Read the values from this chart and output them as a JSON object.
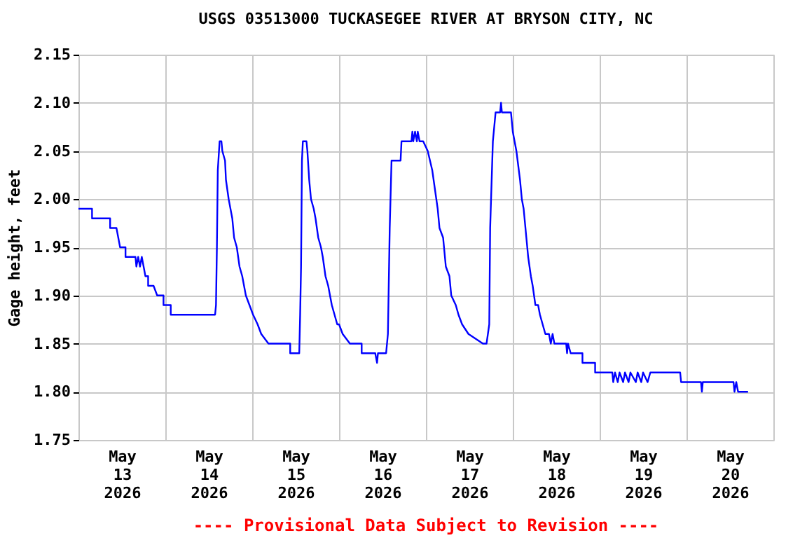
{
  "chart_data": {
    "type": "line",
    "title": "USGS 03513000 TUCKASEGEE RIVER AT BRYSON CITY, NC",
    "ylabel": "Gage height, feet",
    "annotations": [
      "---- Provisional Data Subject to Revision ----"
    ],
    "grid": true,
    "marker": "none",
    "line_style": "solid",
    "ylim": [
      1.75,
      2.15
    ],
    "yticks": [
      {
        "value": 1.75,
        "label": "1.75"
      },
      {
        "value": 1.8,
        "label": "1.80"
      },
      {
        "value": 1.85,
        "label": "1.85"
      },
      {
        "value": 1.9,
        "label": "1.90"
      },
      {
        "value": 1.95,
        "label": "1.95"
      },
      {
        "value": 2.0,
        "label": "2.00"
      },
      {
        "value": 2.05,
        "label": "2.05"
      },
      {
        "value": 2.1,
        "label": "2.10"
      },
      {
        "value": 2.15,
        "label": "2.15"
      }
    ],
    "xlim": [
      "2026-05-13",
      "2026-05-21"
    ],
    "xticks": [
      {
        "value": "2026-05-13T00:00",
        "label": null
      },
      {
        "value": "2026-05-13T12:00",
        "label": "May\n13\n2026"
      },
      {
        "value": "2026-05-14T00:00",
        "label": null
      },
      {
        "value": "2026-05-14T12:00",
        "label": "May\n14\n2026"
      },
      {
        "value": "2026-05-15T00:00",
        "label": null
      },
      {
        "value": "2026-05-15T12:00",
        "label": "May\n15\n2026"
      },
      {
        "value": "2026-05-16T00:00",
        "label": null
      },
      {
        "value": "2026-05-16T12:00",
        "label": "May\n16\n2026"
      },
      {
        "value": "2026-05-17T00:00",
        "label": null
      },
      {
        "value": "2026-05-17T12:00",
        "label": "May\n17\n2026"
      },
      {
        "value": "2026-05-18T00:00",
        "label": null
      },
      {
        "value": "2026-05-18T12:00",
        "label": "May\n18\n2026"
      },
      {
        "value": "2026-05-19T00:00",
        "label": null
      },
      {
        "value": "2026-05-19T12:00",
        "label": "May\n19\n2026"
      },
      {
        "value": "2026-05-20T00:00",
        "label": null
      },
      {
        "value": "2026-05-20T12:00",
        "label": "May\n20\n2026"
      },
      {
        "value": "2026-05-21T00:00",
        "label": null
      }
    ],
    "series": [
      {
        "color": "#0000ff",
        "x": [
          "2026-05-13T00:00",
          "2026-05-13T03:45",
          "2026-05-13T03:45",
          "2026-05-13T08:45",
          "2026-05-13T08:45",
          "2026-05-13T10:30",
          "2026-05-13T11:00",
          "2026-05-13T11:30",
          "2026-05-13T13:00",
          "2026-05-13T13:00",
          "2026-05-13T15:45",
          "2026-05-13T16:00",
          "2026-05-13T16:30",
          "2026-05-13T17:00",
          "2026-05-13T17:30",
          "2026-05-13T18:00",
          "2026-05-13T18:30",
          "2026-05-13T19:15",
          "2026-05-13T19:15",
          "2026-05-13T20:45",
          "2026-05-13T21:45",
          "2026-05-13T23:30",
          "2026-05-13T23:30",
          "2026-05-14T01:30",
          "2026-05-14T01:30",
          "2026-05-14T13:45",
          "2026-05-14T14:00",
          "2026-05-14T14:15",
          "2026-05-14T14:30",
          "2026-05-14T15:00",
          "2026-05-14T15:30",
          "2026-05-14T15:45",
          "2026-05-14T16:30",
          "2026-05-14T16:45",
          "2026-05-14T17:30",
          "2026-05-14T18:30",
          "2026-05-14T19:00",
          "2026-05-14T19:45",
          "2026-05-14T20:30",
          "2026-05-14T21:15",
          "2026-05-14T22:15",
          "2026-05-14T23:15",
          "2026-05-15T00:15",
          "2026-05-15T01:30",
          "2026-05-15T02:30",
          "2026-05-15T04:30",
          "2026-05-15T10:30",
          "2026-05-15T10:30",
          "2026-05-15T13:00",
          "2026-05-15T13:15",
          "2026-05-15T13:30",
          "2026-05-15T13:45",
          "2026-05-15T14:00",
          "2026-05-15T15:00",
          "2026-05-15T15:15",
          "2026-05-15T15:45",
          "2026-05-15T16:15",
          "2026-05-15T17:00",
          "2026-05-15T17:30",
          "2026-05-15T18:15",
          "2026-05-15T19:00",
          "2026-05-15T19:30",
          "2026-05-15T20:15",
          "2026-05-15T21:00",
          "2026-05-15T21:30",
          "2026-05-15T22:00",
          "2026-05-15T22:45",
          "2026-05-15T23:30",
          "2026-05-16T00:00",
          "2026-05-16T01:00",
          "2026-05-16T03:00",
          "2026-05-16T06:15",
          "2026-05-16T06:15",
          "2026-05-16T10:00",
          "2026-05-16T10:30",
          "2026-05-16T10:45",
          "2026-05-16T13:00",
          "2026-05-16T13:30",
          "2026-05-16T14:00",
          "2026-05-16T14:30",
          "2026-05-16T17:00",
          "2026-05-16T17:15",
          "2026-05-16T20:00",
          "2026-05-16T20:15",
          "2026-05-16T20:30",
          "2026-05-16T21:00",
          "2026-05-16T21:30",
          "2026-05-16T21:45",
          "2026-05-16T22:15",
          "2026-05-16T23:15",
          "2026-05-17T00:30",
          "2026-05-17T01:45",
          "2026-05-17T02:30",
          "2026-05-17T03:15",
          "2026-05-17T03:45",
          "2026-05-17T04:45",
          "2026-05-17T05:30",
          "2026-05-17T06:30",
          "2026-05-17T07:00",
          "2026-05-17T08:15",
          "2026-05-17T09:00",
          "2026-05-17T10:00",
          "2026-05-17T11:45",
          "2026-05-17T15:45",
          "2026-05-17T16:45",
          "2026-05-17T17:30",
          "2026-05-17T17:45",
          "2026-05-17T18:30",
          "2026-05-17T19:15",
          "2026-05-17T20:30",
          "2026-05-17T20:45",
          "2026-05-17T21:00",
          "2026-05-17T23:30",
          "2026-05-18T00:00",
          "2026-05-18T01:00",
          "2026-05-18T02:00",
          "2026-05-18T02:30",
          "2026-05-18T03:00",
          "2026-05-18T03:30",
          "2026-05-18T03:45",
          "2026-05-18T04:15",
          "2026-05-18T05:00",
          "2026-05-18T05:30",
          "2026-05-18T06:15",
          "2026-05-18T07:00",
          "2026-05-18T07:30",
          "2026-05-18T08:15",
          "2026-05-18T09:00",
          "2026-05-18T10:00",
          "2026-05-18T10:30",
          "2026-05-18T11:00",
          "2026-05-18T11:30",
          "2026-05-18T12:00",
          "2026-05-18T14:45",
          "2026-05-18T15:00",
          "2026-05-18T15:15",
          "2026-05-18T16:00",
          "2026-05-18T19:15",
          "2026-05-18T19:15",
          "2026-05-18T22:45",
          "2026-05-18T22:45",
          "2026-05-19T03:30",
          "2026-05-19T03:45",
          "2026-05-19T04:15",
          "2026-05-19T05:00",
          "2026-05-19T05:30",
          "2026-05-19T06:30",
          "2026-05-19T07:00",
          "2026-05-19T08:00",
          "2026-05-19T08:30",
          "2026-05-19T10:00",
          "2026-05-19T10:30",
          "2026-05-19T11:30",
          "2026-05-19T12:00",
          "2026-05-19T13:15",
          "2026-05-19T14:00",
          "2026-05-19T22:15",
          "2026-05-19T22:30",
          "2026-05-20T04:00",
          "2026-05-20T04:15",
          "2026-05-20T04:30",
          "2026-05-20T13:00",
          "2026-05-20T13:15",
          "2026-05-20T13:45",
          "2026-05-20T14:15",
          "2026-05-20T17:00"
        ],
        "values": [
          1.99,
          1.99,
          1.98,
          1.98,
          1.97,
          1.97,
          1.96,
          1.95,
          1.95,
          1.94,
          1.94,
          1.93,
          1.94,
          1.93,
          1.94,
          1.93,
          1.92,
          1.92,
          1.91,
          1.91,
          1.9,
          1.9,
          1.89,
          1.89,
          1.88,
          1.88,
          1.89,
          1.95,
          2.03,
          2.06,
          2.06,
          2.05,
          2.04,
          2.02,
          2.0,
          1.98,
          1.96,
          1.95,
          1.93,
          1.92,
          1.9,
          1.89,
          1.88,
          1.87,
          1.86,
          1.85,
          1.85,
          1.84,
          1.84,
          1.88,
          1.93,
          2.04,
          2.06,
          2.06,
          2.05,
          2.02,
          2.0,
          1.99,
          1.98,
          1.96,
          1.95,
          1.94,
          1.92,
          1.91,
          1.9,
          1.89,
          1.88,
          1.87,
          1.87,
          1.86,
          1.85,
          1.85,
          1.84,
          1.84,
          1.83,
          1.84,
          1.84,
          1.86,
          1.97,
          2.04,
          2.04,
          2.06,
          2.06,
          2.07,
          2.06,
          2.07,
          2.06,
          2.07,
          2.06,
          2.06,
          2.05,
          2.03,
          2.01,
          1.99,
          1.97,
          1.96,
          1.93,
          1.92,
          1.9,
          1.89,
          1.88,
          1.87,
          1.86,
          1.85,
          1.85,
          1.87,
          1.97,
          2.06,
          2.09,
          2.09,
          2.1,
          2.09,
          2.09,
          2.07,
          2.05,
          2.02,
          2.0,
          1.99,
          1.97,
          1.96,
          1.94,
          1.92,
          1.91,
          1.89,
          1.89,
          1.88,
          1.87,
          1.86,
          1.86,
          1.85,
          1.86,
          1.85,
          1.85,
          1.85,
          1.84,
          1.85,
          1.84,
          1.84,
          1.83,
          1.83,
          1.82,
          1.82,
          1.81,
          1.82,
          1.81,
          1.82,
          1.81,
          1.82,
          1.81,
          1.82,
          1.81,
          1.82,
          1.81,
          1.82,
          1.81,
          1.82,
          1.82,
          1.81,
          1.81,
          1.8,
          1.81,
          1.81,
          1.8,
          1.81,
          1.8,
          1.8
        ]
      }
    ]
  }
}
